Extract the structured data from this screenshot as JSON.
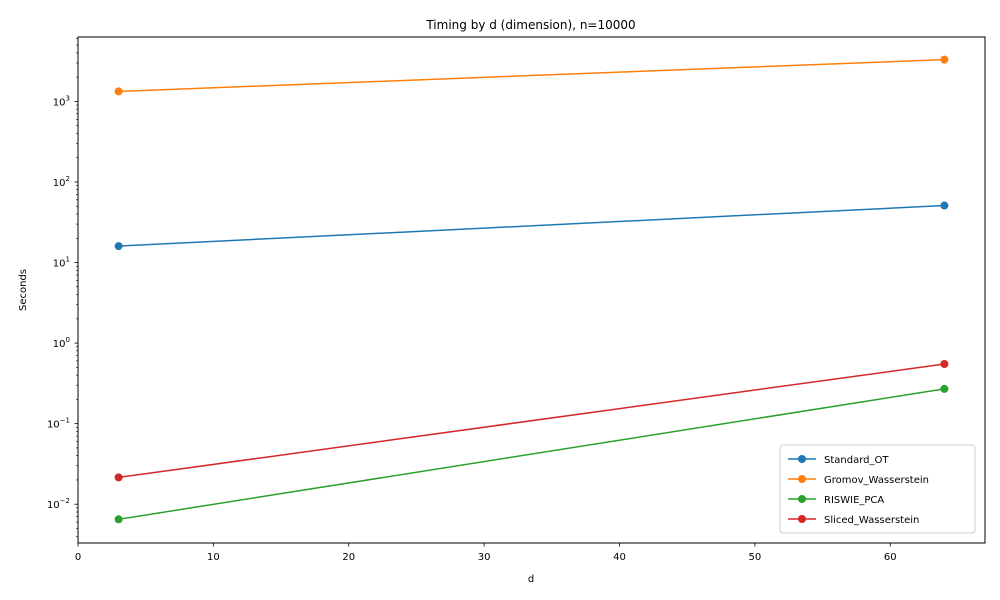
{
  "chart_data": {
    "type": "line",
    "title": "Timing by d (dimension), n=10000",
    "xlabel": "d",
    "ylabel": "Seconds",
    "xlim": [
      0,
      67
    ],
    "ylim": [
      0.0033,
      6300
    ],
    "yscale": "log",
    "xticks": [
      0,
      10,
      20,
      30,
      40,
      50,
      60
    ],
    "yticks": [
      {
        "value": 0.01,
        "base": "10",
        "exp": "−2"
      },
      {
        "value": 0.1,
        "base": "10",
        "exp": "−1"
      },
      {
        "value": 1,
        "base": "10",
        "exp": "0"
      },
      {
        "value": 10,
        "base": "10",
        "exp": "1"
      },
      {
        "value": 100,
        "base": "10",
        "exp": "2"
      },
      {
        "value": 1000,
        "base": "10",
        "exp": "3"
      }
    ],
    "x": [
      3,
      64
    ],
    "grid": false,
    "legend_position": "lower-right",
    "series": [
      {
        "name": "Standard_OT",
        "color": "#1f77b4",
        "values": [
          16,
          51
        ]
      },
      {
        "name": "Gromov_Wasserstein",
        "color": "#ff7f0e",
        "values": [
          1330,
          3300
        ]
      },
      {
        "name": "RISWIE_PCA",
        "color": "#2ca02c",
        "values": [
          0.0065,
          0.27
        ]
      },
      {
        "name": "Sliced_Wasserstein",
        "color": "#d62728",
        "values": [
          0.0215,
          0.55
        ]
      }
    ]
  }
}
